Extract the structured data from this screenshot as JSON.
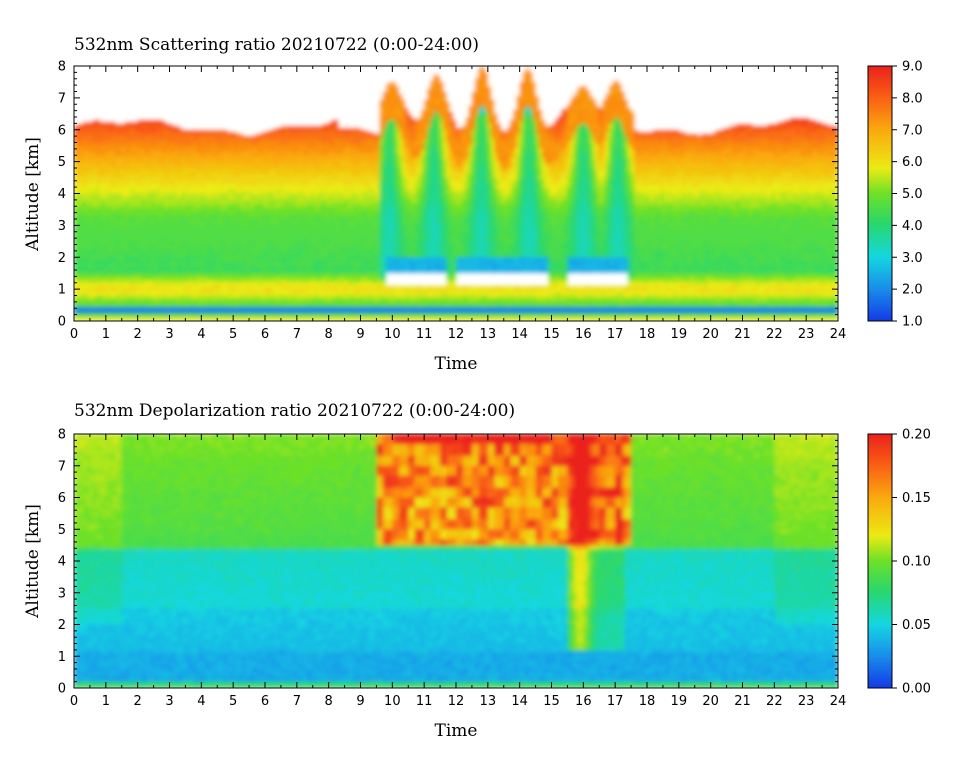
{
  "chart_data": [
    {
      "type": "heatmap",
      "title": "532nm Scattering ratio  20210722 (0:00-24:00)",
      "xlabel": "Time",
      "ylabel": "Altitude [km]",
      "xlim": [
        0,
        24
      ],
      "ylim": [
        0,
        8
      ],
      "x_ticks": [
        "0",
        "1",
        "2",
        "3",
        "4",
        "5",
        "6",
        "7",
        "8",
        "9",
        "10",
        "11",
        "12",
        "13",
        "14",
        "15",
        "16",
        "17",
        "18",
        "19",
        "20",
        "21",
        "22",
        "23",
        "24"
      ],
      "y_ticks": [
        "0",
        "1",
        "2",
        "3",
        "4",
        "5",
        "6",
        "7",
        "8"
      ],
      "colorbar": {
        "range": [
          1.0,
          9.0
        ],
        "ticks": [
          "1.0",
          "2.0",
          "3.0",
          "4.0",
          "5.0",
          "6.0",
          "7.0",
          "8.0",
          "9.0"
        ],
        "colormap": "rainbow (blue-cyan-green-yellow-orange-red)"
      },
      "features": {
        "valid_top_km": 6.1,
        "boundary_layer_km": 1.0,
        "cloud_base_km": 1.3,
        "cloud_intervals_h": [
          [
            9.8,
            11.7
          ],
          [
            12.0,
            14.9
          ],
          [
            15.5,
            17.4
          ]
        ],
        "convective_columns_h": [
          9.9,
          11.3,
          12.8,
          14.3,
          16.0,
          17.1
        ],
        "colors": {
          "background": "#ffffff",
          "frame": "#000000"
        }
      }
    },
    {
      "type": "heatmap",
      "title": "532nm Depolarization ratio  20210722 (0:00-24:00)",
      "xlabel": "Time",
      "ylabel": "Altitude [km]",
      "xlim": [
        0,
        24
      ],
      "ylim": [
        0,
        8
      ],
      "x_ticks": [
        "0",
        "1",
        "2",
        "3",
        "4",
        "5",
        "6",
        "7",
        "8",
        "9",
        "10",
        "11",
        "12",
        "13",
        "14",
        "15",
        "16",
        "17",
        "18",
        "19",
        "20",
        "21",
        "22",
        "23",
        "24"
      ],
      "y_ticks": [
        "0",
        "1",
        "2",
        "3",
        "4",
        "5",
        "6",
        "7",
        "8"
      ],
      "colorbar": {
        "range": [
          0.0,
          0.2
        ],
        "ticks": [
          "0.00",
          "0.05",
          "0.10",
          "0.15",
          "0.20"
        ],
        "colormap": "rainbow (blue-cyan-green-yellow-orange-red)"
      },
      "features": {
        "low_depol_layer_km": [
          0.2,
          2.5
        ],
        "high_depol_band_h": [
          9.5,
          17.5
        ],
        "colors": {
          "background": "#ffffff",
          "frame": "#000000"
        }
      }
    }
  ]
}
